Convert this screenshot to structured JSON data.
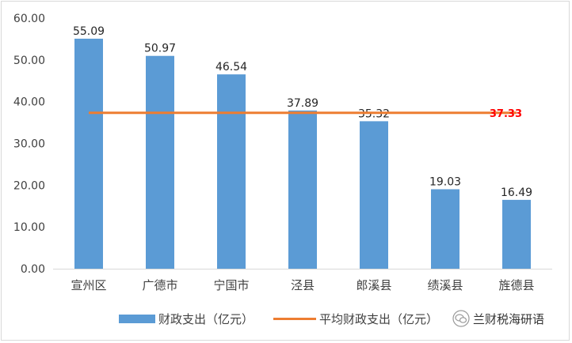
{
  "chart_data": {
    "type": "bar",
    "categories": [
      "宣州区",
      "广德市",
      "宁国市",
      "泾县",
      "郎溪县",
      "绩溪县",
      "旌德县"
    ],
    "series": [
      {
        "name": "财政支出（亿元）",
        "type": "bar",
        "color": "#5b9bd5",
        "values": [
          55.09,
          50.97,
          46.54,
          37.89,
          35.32,
          19.03,
          16.49
        ],
        "labels": [
          "55.09",
          "50.97",
          "46.54",
          "37.89",
          "35.32",
          "19.03",
          "16.49"
        ]
      },
      {
        "name": "平均财政支出（亿元）",
        "type": "line",
        "color": "#ed7d31",
        "values": [
          37.33,
          37.33,
          37.33,
          37.33,
          37.33,
          37.33,
          37.33
        ],
        "end_label": "37.33",
        "end_label_color": "#ff0000"
      }
    ],
    "ylim": [
      0,
      60
    ],
    "yticks": [
      "0.00",
      "10.00",
      "20.00",
      "30.00",
      "40.00",
      "50.00",
      "60.00"
    ],
    "legend_position": "bottom",
    "grid": false
  },
  "legend": {
    "bar_label": "财政支出（亿元）",
    "line_label": "平均财政支出（亿元）"
  },
  "watermark": {
    "text": "兰财税海研语",
    "icon": "wechat-logo-icon"
  }
}
